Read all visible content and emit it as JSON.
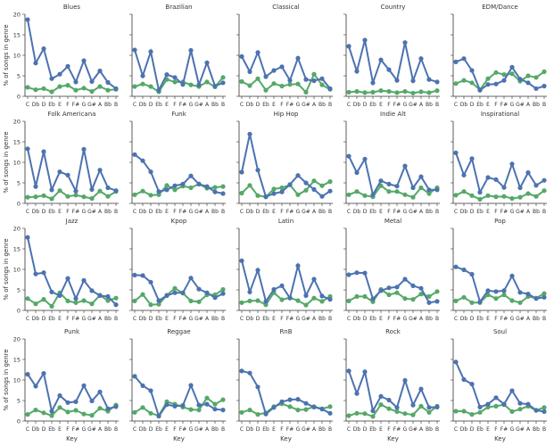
{
  "chart_data": {
    "type": "line",
    "categories": [
      "C",
      "Db",
      "D",
      "Eb",
      "E",
      "F",
      "F#",
      "G",
      "G#",
      "A",
      "Bb",
      "B"
    ],
    "ylim": [
      0,
      20
    ],
    "yticks": [
      0,
      5,
      10,
      15,
      20
    ],
    "ylabel": "% of songs in genre",
    "xlabel": "Key",
    "colors": {
      "major": "#4c72b0",
      "minor": "#55a868"
    },
    "panels": [
      {
        "title": "Blues",
        "blue": [
          18.7,
          8.1,
          11.6,
          4.3,
          5.4,
          7.3,
          3.5,
          8.7,
          3.6,
          6.2,
          3.4,
          1.9
        ],
        "green": [
          2.2,
          1.6,
          1.9,
          1.1,
          2.4,
          2.7,
          1.5,
          2.0,
          1.2,
          2.4,
          1.5,
          1.7
        ]
      },
      {
        "title": "Brazilian",
        "blue": [
          11.3,
          5.0,
          10.9,
          1.5,
          5.3,
          4.6,
          2.9,
          11.2,
          2.8,
          8.2,
          2.5,
          3.3
        ],
        "green": [
          2.4,
          3.0,
          2.4,
          1.1,
          4.1,
          3.5,
          3.5,
          2.8,
          2.4,
          3.5,
          2.3,
          4.6
        ]
      },
      {
        "title": "Classical",
        "blue": [
          9.7,
          6.0,
          10.7,
          4.8,
          6.3,
          7.2,
          3.9,
          9.3,
          4.1,
          3.8,
          4.3,
          1.9
        ],
        "green": [
          3.6,
          2.6,
          4.3,
          1.5,
          3.1,
          2.5,
          2.9,
          3.0,
          1.0,
          5.4,
          2.8,
          1.7
        ]
      },
      {
        "title": "Country",
        "blue": [
          12.2,
          6.1,
          13.7,
          3.3,
          8.9,
          6.5,
          3.9,
          13.1,
          3.8,
          9.2,
          4.1,
          3.5
        ],
        "green": [
          1.0,
          1.2,
          0.9,
          1.0,
          1.4,
          1.2,
          0.9,
          1.2,
          0.8,
          1.1,
          0.9,
          1.4
        ]
      },
      {
        "title": "EDM/Dance",
        "blue": [
          8.4,
          9.2,
          6.3,
          1.5,
          2.9,
          3.0,
          3.9,
          7.1,
          4.2,
          3.3,
          1.9,
          2.5
        ],
        "green": [
          3.1,
          3.9,
          3.3,
          1.6,
          4.3,
          5.8,
          5.3,
          5.5,
          3.7,
          5.0,
          4.6,
          6.0
        ]
      },
      {
        "title": "Folk Americana",
        "blue": [
          13.3,
          4.1,
          12.6,
          3.3,
          7.7,
          6.9,
          3.0,
          13.2,
          3.4,
          8.1,
          3.8,
          3.1
        ],
        "green": [
          1.5,
          1.6,
          1.9,
          1.1,
          3.1,
          1.7,
          2.0,
          1.6,
          1.2,
          3.0,
          1.7,
          2.9
        ]
      },
      {
        "title": "Funk",
        "blue": [
          11.9,
          10.4,
          7.7,
          2.9,
          3.3,
          4.3,
          4.7,
          6.7,
          4.7,
          4.1,
          2.8,
          2.4
        ],
        "green": [
          2.1,
          3.0,
          2.0,
          2.1,
          4.4,
          3.3,
          4.2,
          3.8,
          4.7,
          3.7,
          3.9,
          4.1
        ]
      },
      {
        "title": "Hip Hop",
        "blue": [
          7.6,
          16.9,
          8.1,
          1.6,
          2.4,
          2.8,
          4.6,
          6.8,
          5.0,
          3.4,
          1.7,
          3.0
        ],
        "green": [
          2.5,
          4.4,
          1.9,
          1.6,
          3.5,
          3.8,
          4.5,
          2.1,
          3.2,
          5.5,
          4.3,
          5.3
        ]
      },
      {
        "title": "Indie Alt",
        "blue": [
          11.5,
          7.5,
          10.8,
          2.1,
          5.5,
          4.7,
          4.2,
          9.1,
          3.8,
          6.5,
          3.3,
          3.3
        ],
        "green": [
          2.1,
          2.9,
          1.9,
          1.6,
          4.3,
          2.9,
          2.9,
          2.1,
          1.5,
          3.8,
          2.4,
          3.8
        ]
      },
      {
        "title": "Inspirational",
        "blue": [
          12.3,
          6.9,
          10.9,
          2.7,
          6.3,
          5.8,
          3.9,
          9.6,
          3.8,
          7.5,
          4.4,
          5.6
        ],
        "green": [
          2.0,
          2.9,
          1.9,
          1.0,
          1.9,
          1.6,
          1.7,
          1.2,
          1.5,
          2.4,
          1.7,
          3.1
        ]
      },
      {
        "title": "Jazz",
        "blue": [
          17.8,
          8.9,
          9.2,
          4.5,
          3.6,
          7.8,
          2.9,
          7.3,
          4.8,
          3.6,
          3.4,
          1.4
        ],
        "green": [
          2.9,
          1.6,
          2.7,
          1.0,
          4.3,
          2.3,
          1.9,
          2.4,
          1.6,
          3.7,
          2.4,
          3.0
        ]
      },
      {
        "title": "Kpop",
        "blue": [
          8.6,
          8.5,
          6.9,
          2.4,
          3.6,
          4.3,
          4.3,
          7.9,
          5.2,
          4.3,
          3.1,
          4.1
        ],
        "green": [
          2.3,
          3.9,
          1.4,
          1.5,
          3.7,
          5.4,
          4.2,
          2.3,
          2.1,
          3.8,
          3.8,
          5.1
        ]
      },
      {
        "title": "Latin",
        "blue": [
          12.1,
          4.5,
          9.8,
          2.2,
          5.1,
          6.0,
          3.0,
          10.9,
          3.6,
          7.6,
          3.5,
          2.7
        ],
        "green": [
          1.9,
          2.3,
          2.4,
          1.4,
          4.3,
          2.6,
          3.1,
          2.4,
          1.3,
          3.0,
          2.2,
          3.4
        ]
      },
      {
        "title": "Metal",
        "blue": [
          8.7,
          9.2,
          9.1,
          2.8,
          4.8,
          5.5,
          5.7,
          7.6,
          6.0,
          5.4,
          1.9,
          2.2
        ],
        "green": [
          2.3,
          3.4,
          3.4,
          2.1,
          5.1,
          3.8,
          4.3,
          2.9,
          2.7,
          4.0,
          3.4,
          4.6
        ]
      },
      {
        "title": "Pop",
        "blue": [
          10.6,
          9.9,
          8.8,
          2.1,
          4.8,
          4.6,
          4.8,
          8.4,
          4.4,
          4.0,
          2.9,
          3.2
        ],
        "green": [
          2.3,
          3.2,
          1.9,
          1.9,
          3.8,
          2.9,
          3.8,
          2.4,
          1.9,
          3.4,
          3.0,
          4.1
        ]
      },
      {
        "title": "Punk",
        "blue": [
          11.4,
          8.5,
          11.6,
          2.4,
          6.2,
          4.5,
          4.7,
          8.6,
          4.9,
          7.1,
          3.0,
          3.5
        ],
        "green": [
          1.6,
          2.7,
          2.0,
          1.3,
          3.3,
          2.2,
          2.6,
          1.7,
          1.4,
          3.1,
          2.4,
          3.9
        ]
      },
      {
        "title": "Reggae",
        "blue": [
          10.9,
          8.6,
          7.4,
          1.2,
          4.0,
          3.6,
          3.8,
          8.7,
          3.9,
          4.1,
          2.9,
          2.7
        ],
        "green": [
          2.1,
          3.3,
          1.9,
          1.3,
          4.7,
          4.1,
          3.4,
          2.8,
          2.7,
          5.6,
          4.1,
          5.2
        ]
      },
      {
        "title": "RnB",
        "blue": [
          12.2,
          11.7,
          8.3,
          1.7,
          3.3,
          4.7,
          5.2,
          5.3,
          4.3,
          3.4,
          2.9,
          1.9
        ],
        "green": [
          2.1,
          2.7,
          1.6,
          2.0,
          3.5,
          4.2,
          3.5,
          2.7,
          2.8,
          3.5,
          3.0,
          3.5
        ]
      },
      {
        "title": "Rock",
        "blue": [
          12.2,
          6.7,
          12.0,
          2.5,
          6.0,
          5.1,
          3.3,
          9.9,
          3.9,
          7.8,
          3.3,
          3.4
        ],
        "green": [
          1.3,
          1.9,
          1.8,
          1.1,
          4.0,
          3.0,
          2.3,
          1.8,
          1.5,
          3.6,
          2.1,
          3.6
        ]
      },
      {
        "title": "Soul",
        "blue": [
          14.4,
          10.1,
          9.0,
          3.4,
          4.1,
          5.7,
          4.1,
          7.4,
          4.3,
          4.1,
          2.6,
          2.3
        ],
        "green": [
          2.4,
          2.4,
          1.6,
          2.1,
          3.4,
          3.6,
          4.0,
          2.3,
          2.9,
          3.6,
          2.6,
          3.3
        ]
      }
    ]
  }
}
